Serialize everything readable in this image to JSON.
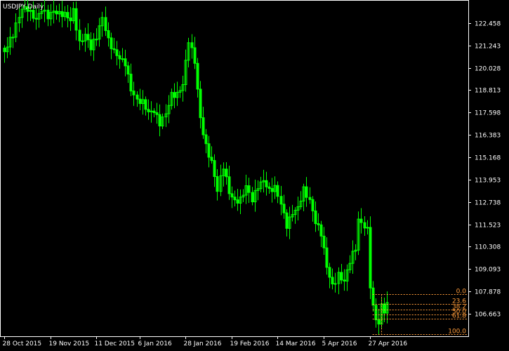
{
  "chart_data": {
    "type": "candlestick",
    "title": "USDJPY,Daily",
    "colors": {
      "background": "#000000",
      "frame": "#ffffff",
      "candle": "#00ff00",
      "fibonacci": "#ff9c3a"
    },
    "ylim": [
      105.44,
      123.673
    ],
    "y_ticks": [
      "122.458",
      "121.243",
      "120.028",
      "118.813",
      "117.598",
      "116.383",
      "115.168",
      "113.953",
      "112.738",
      "111.523",
      "110.308",
      "109.093",
      "107.878",
      "106.663"
    ],
    "x_ticks": [
      {
        "label": "28 Oct 2015",
        "index": 0
      },
      {
        "label": "19 Nov 2015",
        "index": 16
      },
      {
        "label": "11 Dec 2015",
        "index": 32
      },
      {
        "label": "6 Jan 2016",
        "index": 47
      },
      {
        "label": "28 Jan 2016",
        "index": 63
      },
      {
        "label": "19 Feb 2016",
        "index": 79
      },
      {
        "label": "14 Mar 2016",
        "index": 95
      },
      {
        "label": "5 Apr 2016",
        "index": 111
      },
      {
        "label": "27 Apr 2016",
        "index": 127
      }
    ],
    "anchors": [
      {
        "i": 0,
        "v": 120.9
      },
      {
        "i": 3,
        "v": 121.6
      },
      {
        "i": 6,
        "v": 123.1
      },
      {
        "i": 8,
        "v": 123.3
      },
      {
        "i": 11,
        "v": 122.9
      },
      {
        "i": 13,
        "v": 123.4
      },
      {
        "i": 15,
        "v": 122.8
      },
      {
        "i": 17,
        "v": 122.9
      },
      {
        "i": 19,
        "v": 122.7
      },
      {
        "i": 21,
        "v": 122.8
      },
      {
        "i": 23,
        "v": 122.7
      },
      {
        "i": 24,
        "v": 123.3
      },
      {
        "i": 26,
        "v": 121.6
      },
      {
        "i": 28,
        "v": 122.0
      },
      {
        "i": 30,
        "v": 121.1
      },
      {
        "i": 32,
        "v": 121.5
      },
      {
        "i": 34,
        "v": 122.5
      },
      {
        "i": 36,
        "v": 121.4
      },
      {
        "i": 38,
        "v": 121.0
      },
      {
        "i": 40,
        "v": 120.8
      },
      {
        "i": 42,
        "v": 120.5
      },
      {
        "i": 44,
        "v": 118.9
      },
      {
        "i": 46,
        "v": 118.1
      },
      {
        "i": 48,
        "v": 117.9
      },
      {
        "i": 50,
        "v": 117.4
      },
      {
        "i": 52,
        "v": 117.7
      },
      {
        "i": 54,
        "v": 117.2
      },
      {
        "i": 56,
        "v": 117.8
      },
      {
        "i": 58,
        "v": 118.7
      },
      {
        "i": 60,
        "v": 118.5
      },
      {
        "i": 62,
        "v": 118.9
      },
      {
        "i": 64,
        "v": 121.3
      },
      {
        "i": 66,
        "v": 120.3
      },
      {
        "i": 68,
        "v": 117.4
      },
      {
        "i": 70,
        "v": 116.0
      },
      {
        "i": 72,
        "v": 115.1
      },
      {
        "i": 74,
        "v": 113.4
      },
      {
        "i": 76,
        "v": 114.5
      },
      {
        "i": 78,
        "v": 113.0
      },
      {
        "i": 80,
        "v": 112.6
      },
      {
        "i": 82,
        "v": 112.9
      },
      {
        "i": 84,
        "v": 113.8
      },
      {
        "i": 86,
        "v": 113.1
      },
      {
        "i": 88,
        "v": 113.7
      },
      {
        "i": 90,
        "v": 113.8
      },
      {
        "i": 92,
        "v": 113.1
      },
      {
        "i": 94,
        "v": 113.3
      },
      {
        "i": 96,
        "v": 112.6
      },
      {
        "i": 98,
        "v": 111.6
      },
      {
        "i": 100,
        "v": 112.4
      },
      {
        "i": 102,
        "v": 112.6
      },
      {
        "i": 104,
        "v": 113.4
      },
      {
        "i": 106,
        "v": 112.6
      },
      {
        "i": 108,
        "v": 111.4
      },
      {
        "i": 110,
        "v": 110.9
      },
      {
        "i": 112,
        "v": 109.3
      },
      {
        "i": 114,
        "v": 108.4
      },
      {
        "i": 116,
        "v": 109.0
      },
      {
        "i": 118,
        "v": 108.5
      },
      {
        "i": 120,
        "v": 109.4
      },
      {
        "i": 122,
        "v": 110.0
      },
      {
        "i": 123,
        "v": 111.5
      },
      {
        "i": 125,
        "v": 111.3
      },
      {
        "i": 126,
        "v": 111.2
      },
      {
        "i": 127,
        "v": 108.3
      },
      {
        "i": 128,
        "v": 107.2
      },
      {
        "i": 129,
        "v": 106.6
      },
      {
        "i": 130,
        "v": 106.4
      },
      {
        "i": 131,
        "v": 107.3
      },
      {
        "i": 132,
        "v": 107.0
      },
      {
        "i": 133,
        "v": 107.2
      }
    ],
    "fibonacci": {
      "high": 107.72,
      "low": 105.55,
      "levels": [
        {
          "label": "0.0",
          "ratio": 0.0
        },
        {
          "label": "23.6",
          "ratio": 0.236
        },
        {
          "label": "38.2",
          "ratio": 0.382
        },
        {
          "label": "50.0",
          "ratio": 0.5
        },
        {
          "label": "61.8",
          "ratio": 0.618
        },
        {
          "label": "100.0",
          "ratio": 1.0
        }
      ]
    }
  }
}
